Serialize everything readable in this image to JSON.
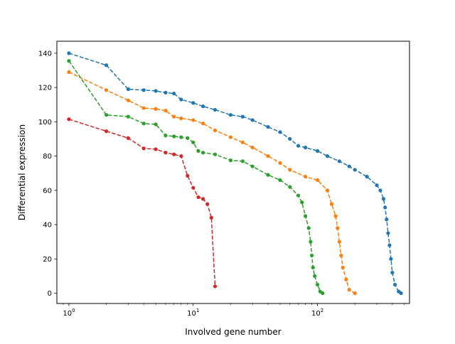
{
  "chart_data": {
    "type": "line",
    "title": "",
    "xlabel": "Involved gene number",
    "ylabel": "Differential expression",
    "xscale": "log",
    "xlim": [
      0.8,
      550
    ],
    "ylim": [
      -6,
      147
    ],
    "x_ticks": [
      {
        "value": 1,
        "base": "10",
        "exp": "0"
      },
      {
        "value": 10,
        "base": "10",
        "exp": "1"
      },
      {
        "value": 100,
        "base": "10",
        "exp": "2"
      }
    ],
    "y_ticks": [
      0,
      20,
      40,
      60,
      80,
      100,
      120,
      140
    ],
    "grid": false,
    "legend": "none",
    "line_style": "dashed",
    "marker": "dot",
    "series": [
      {
        "color": "#1f77b4",
        "x": [
          1,
          2,
          3,
          4,
          5,
          6,
          7,
          8,
          10,
          12,
          15,
          20,
          25,
          30,
          40,
          50,
          60,
          70,
          80,
          100,
          120,
          150,
          180,
          200,
          250,
          300,
          320,
          340,
          350,
          360,
          370,
          380,
          390,
          400,
          420,
          450,
          470
        ],
        "y": [
          140,
          133,
          119,
          118.5,
          118,
          117,
          116.5,
          113,
          111,
          109,
          107,
          104,
          103,
          101,
          97,
          94,
          90,
          86,
          85,
          83,
          80,
          77,
          74,
          72,
          68,
          63,
          60,
          55,
          50,
          43,
          35,
          28,
          20,
          12,
          5,
          1,
          0
        ]
      },
      {
        "color": "#ff7f0e",
        "x": [
          1,
          2,
          3,
          4,
          5,
          6,
          7,
          8,
          10,
          12,
          15,
          20,
          25,
          30,
          40,
          50,
          60,
          80,
          100,
          120,
          130,
          140,
          145,
          150,
          155,
          160,
          170,
          180,
          200
        ],
        "y": [
          129,
          118.5,
          112.5,
          108,
          107.5,
          106.5,
          103,
          102,
          101,
          99,
          95,
          91,
          88,
          85,
          80,
          76,
          72,
          68,
          66,
          60,
          52,
          45,
          38,
          30,
          22,
          15,
          8,
          2,
          0
        ]
      },
      {
        "color": "#2ca02c",
        "x": [
          1,
          2,
          3,
          4,
          5,
          6,
          7,
          8,
          9,
          10,
          11,
          12,
          15,
          20,
          25,
          30,
          40,
          50,
          60,
          70,
          75,
          80,
          85,
          88,
          90,
          92,
          95,
          100,
          105,
          110
        ],
        "y": [
          135.5,
          104,
          103,
          99,
          98.5,
          92,
          91.5,
          91,
          90.5,
          88,
          83,
          82,
          81,
          77.5,
          77,
          74,
          69,
          66,
          62,
          57,
          53,
          45,
          38,
          30,
          22,
          15,
          10,
          5,
          1,
          0
        ]
      },
      {
        "color": "#d62728",
        "x": [
          1,
          2,
          3,
          4,
          5,
          6,
          7,
          8,
          9,
          10,
          11,
          12,
          13,
          14,
          15
        ],
        "y": [
          101.5,
          94.5,
          90.5,
          84.5,
          84,
          82,
          81,
          80,
          68.5,
          61.5,
          56,
          55,
          52,
          44,
          4
        ]
      }
    ]
  }
}
